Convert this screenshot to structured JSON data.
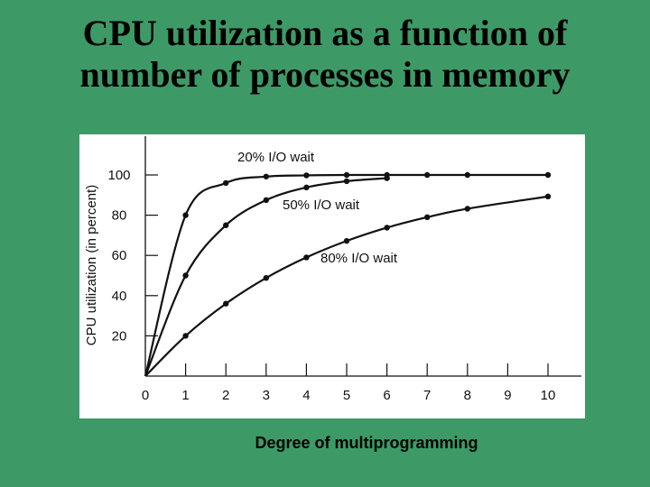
{
  "slide": {
    "title_line1": "CPU utilization as a function of",
    "title_line2": "number of processes in memory"
  },
  "chart_data": {
    "type": "line",
    "xlabel": "Degree of multiprogramming",
    "ylabel": "CPU utilization (in percent)",
    "x_ticks": [
      0,
      1,
      2,
      3,
      4,
      5,
      6,
      7,
      8,
      9,
      10
    ],
    "y_ticks": [
      20,
      40,
      60,
      80,
      100
    ],
    "xlim": [
      0,
      10
    ],
    "ylim": [
      0,
      110
    ],
    "grid": false,
    "line_color": "#111111",
    "series": [
      {
        "name": "20% I/O wait",
        "x": [
          0,
          1,
          2,
          3,
          4,
          5,
          6,
          7,
          8,
          10
        ],
        "y": [
          0,
          80,
          96,
          99.2,
          99.8,
          100,
          100,
          100,
          100,
          100
        ]
      },
      {
        "name": "50% I/O wait",
        "x": [
          0,
          1,
          2,
          3,
          4,
          5,
          6
        ],
        "y": [
          0,
          50,
          75,
          87.5,
          93.8,
          96.9,
          98.4
        ]
      },
      {
        "name": "80% I/O wait",
        "x": [
          0,
          1,
          2,
          3,
          4,
          5,
          6,
          7,
          8,
          10
        ],
        "y": [
          0,
          20,
          36,
          48.8,
          59,
          67.2,
          73.8,
          79,
          83.2,
          89.3
        ]
      }
    ]
  }
}
